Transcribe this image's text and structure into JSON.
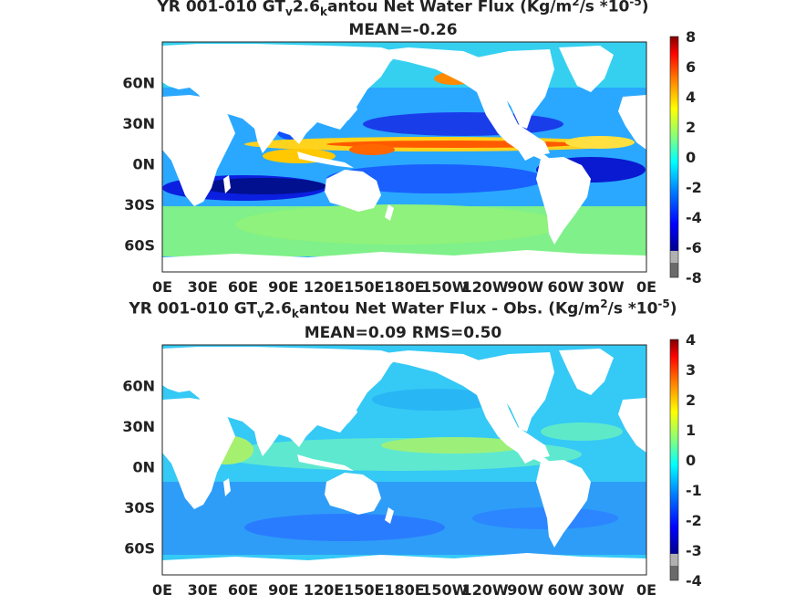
{
  "panels": [
    {
      "title": {
        "pre": "YR 001-010 GT",
        "sub1": "v",
        "mid": "2.6",
        "sub2": "k",
        "post": "antou  Net Water Flux (Kg/m",
        "sup1": "2",
        "post2": "/s *10",
        "sup2": "-5",
        "end": ")"
      },
      "stat": "MEAN=-0.26",
      "colorbar": {
        "min": -8,
        "max": 8,
        "ticks": [
          "8",
          "6",
          "4",
          "2",
          "0",
          "-2",
          "-4",
          "-6",
          "-8"
        ]
      }
    },
    {
      "title": {
        "pre": "YR 001-010 GT",
        "sub1": "v",
        "mid": "2.6",
        "sub2": "k",
        "post": "antou  Net Water Flux - Obs. (Kg/m",
        "sup1": "2",
        "post2": "/s *10",
        "sup2": "-5",
        "end": ")"
      },
      "stat": "MEAN=0.09 RMS=0.50",
      "colorbar": {
        "min": -4,
        "max": 4,
        "ticks": [
          "4",
          "3",
          "2",
          "1",
          "0",
          "-1",
          "-2",
          "-3",
          "-4"
        ]
      }
    }
  ],
  "axes": {
    "lat_ticks": [
      "60N",
      "30N",
      "0N",
      "30S",
      "60S"
    ],
    "lon_ticks": [
      "0E",
      "30E",
      "60E",
      "90E",
      "120E",
      "150E",
      "180E",
      "150W",
      "120W",
      "90W",
      "60W",
      "30W",
      "0E"
    ]
  },
  "chart_data": [
    {
      "type": "heatmap",
      "title": "YR 001-010 GTv2.6kantou Net Water Flux (Kg/m2/s *10-5)",
      "annotation": "MEAN=-0.26",
      "x_range": [
        0,
        360
      ],
      "y_range": [
        -80,
        90
      ],
      "colorbar_range": [
        -8,
        8
      ],
      "colormap": [
        "#6a6a6a",
        "#b0b0b0",
        "#00008f",
        "#0000ff",
        "#0080ff",
        "#00ffff",
        "#80ff80",
        "#ffff00",
        "#ff8000",
        "#ff0000",
        "#800000"
      ]
    },
    {
      "type": "heatmap",
      "title": "YR 001-010 GTv2.6kantou Net Water Flux - Obs. (Kg/m2/s *10-5)",
      "annotation": "MEAN=0.09 RMS=0.50",
      "x_range": [
        0,
        360
      ],
      "y_range": [
        -80,
        90
      ],
      "colorbar_range": [
        -4,
        4
      ],
      "colormap": [
        "#6a6a6a",
        "#b0b0b0",
        "#00008f",
        "#0000ff",
        "#0080ff",
        "#00ffff",
        "#80ff80",
        "#ffff00",
        "#ff8000",
        "#ff0000",
        "#800000"
      ]
    }
  ]
}
